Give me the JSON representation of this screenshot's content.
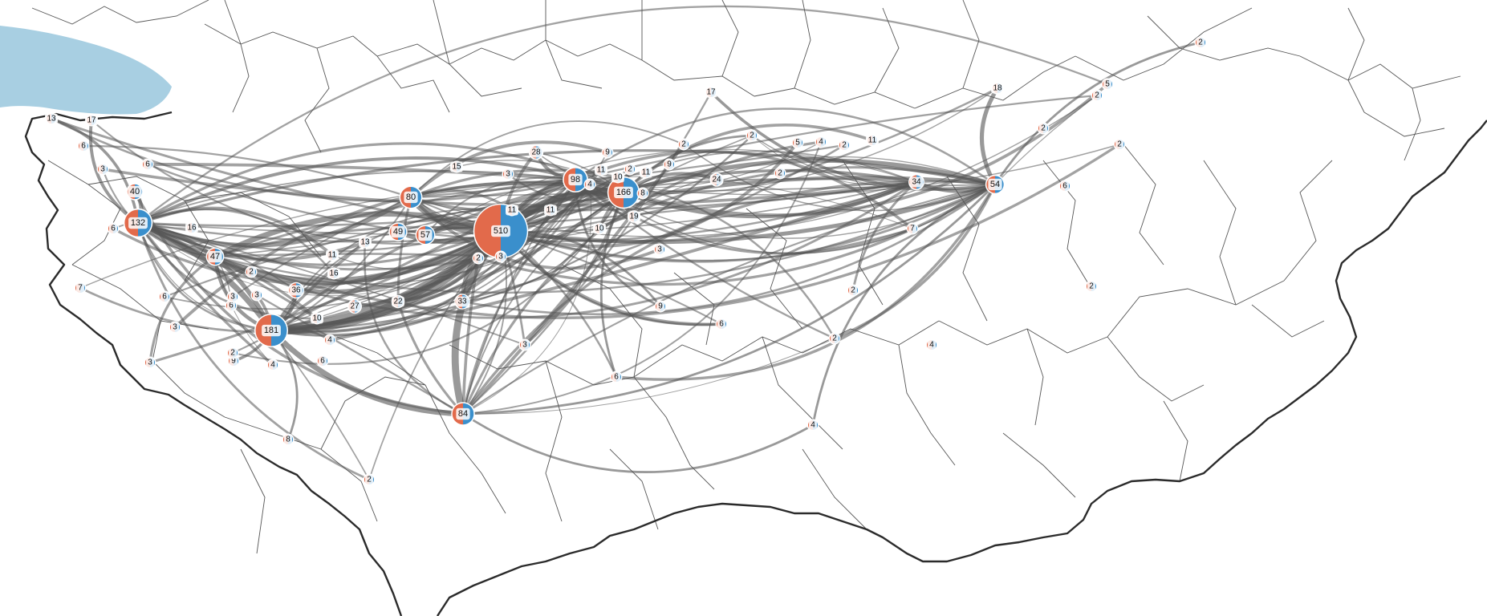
{
  "colors": {
    "lake": "#a8cfe2",
    "border": "#2b2b2b",
    "district": "#555555",
    "flow": "#555555",
    "outgoing": "#e26a4b",
    "incoming": "#3a8fcc",
    "label_bg": "#ffffff"
  },
  "nodes": [
    {
      "id": "n510",
      "label": "510",
      "value": 510,
      "out_share": 0.45
    },
    {
      "id": "n181",
      "label": "181",
      "value": 181,
      "out_share": 0.55
    },
    {
      "id": "n166",
      "label": "166",
      "value": 166,
      "out_share": 0.6
    },
    {
      "id": "n132",
      "label": "132",
      "value": 132,
      "out_share": 0.65
    },
    {
      "id": "n98",
      "label": "98",
      "value": 98,
      "out_share": 0.7
    },
    {
      "id": "n84",
      "label": "84",
      "value": 84,
      "out_share": 0.5
    },
    {
      "id": "n80",
      "label": "80",
      "value": 80,
      "out_share": 0.4
    },
    {
      "id": "n57",
      "label": "57",
      "value": 57,
      "out_share": 0.3
    },
    {
      "id": "n54",
      "label": "54",
      "value": 54,
      "out_share": 0.55
    },
    {
      "id": "n49",
      "label": "49",
      "value": 49,
      "out_share": 0.6
    },
    {
      "id": "n47",
      "label": "47",
      "value": 47,
      "out_share": 0.55
    },
    {
      "id": "n40",
      "label": "40",
      "value": 40,
      "out_share": 0.6
    },
    {
      "id": "n36",
      "label": "36",
      "value": 36,
      "out_share": 0.55
    },
    {
      "id": "n34",
      "label": "34",
      "value": 34,
      "out_share": 0.5
    },
    {
      "id": "n33",
      "label": "33",
      "value": 33,
      "out_share": 0.55
    },
    {
      "id": "n28",
      "label": "28",
      "value": 28,
      "out_share": 0.6
    },
    {
      "id": "n27",
      "label": "27",
      "value": 27,
      "out_share": 0.4
    },
    {
      "id": "n24",
      "label": "24",
      "value": 24,
      "out_share": 0.5
    },
    {
      "id": "n22",
      "label": "22",
      "value": 22,
      "out_share": 0.6
    },
    {
      "id": "n19",
      "label": "19",
      "value": 19,
      "out_share": 0.5
    },
    {
      "id": "n18",
      "label": "18",
      "value": 18,
      "out_share": 0.6
    },
    {
      "id": "n17a",
      "label": "17",
      "value": 17,
      "out_share": 0.5
    },
    {
      "id": "n17b",
      "label": "17",
      "value": 17,
      "out_share": 0.6
    },
    {
      "id": "n16a",
      "label": "16",
      "value": 16,
      "out_share": 0.4
    },
    {
      "id": "n16b",
      "label": "16",
      "value": 16,
      "out_share": 0.5
    },
    {
      "id": "n15",
      "label": "15",
      "value": 15,
      "out_share": 0.5
    },
    {
      "id": "n13a",
      "label": "13",
      "value": 13,
      "out_share": 0.6
    },
    {
      "id": "n13b",
      "label": "13",
      "value": 13,
      "out_share": 0.5
    },
    {
      "id": "n11a",
      "label": "11",
      "value": 11,
      "out_share": 0.5
    },
    {
      "id": "n11b",
      "label": "11",
      "value": 11,
      "out_share": 0.4
    },
    {
      "id": "n11c",
      "label": "11",
      "value": 11,
      "out_share": 0.6
    },
    {
      "id": "n11d",
      "label": "11",
      "value": 11,
      "out_share": 0.5
    },
    {
      "id": "n11e",
      "label": "11",
      "value": 11,
      "out_share": 0.5
    },
    {
      "id": "n11f",
      "label": "11",
      "value": 11,
      "out_share": 0.5
    },
    {
      "id": "n10a",
      "label": "10",
      "value": 10,
      "out_share": 0.6
    },
    {
      "id": "n10b",
      "label": "10",
      "value": 10,
      "out_share": 0.5
    },
    {
      "id": "n10c",
      "label": "10",
      "value": 10,
      "out_share": 0.5
    },
    {
      "id": "n9a",
      "label": "9",
      "value": 9,
      "out_share": 0.5
    },
    {
      "id": "n9b",
      "label": "9",
      "value": 9,
      "out_share": 0.5
    },
    {
      "id": "n9c",
      "label": "9",
      "value": 9,
      "out_share": 0.5
    },
    {
      "id": "n9d",
      "label": "9",
      "value": 9,
      "out_share": 0.5
    },
    {
      "id": "n8a",
      "label": "8",
      "value": 8,
      "out_share": 0.5
    },
    {
      "id": "n8b",
      "label": "8",
      "value": 8,
      "out_share": 0.5
    },
    {
      "id": "n7a",
      "label": "7",
      "value": 7,
      "out_share": 0.6
    },
    {
      "id": "n7b",
      "label": "7",
      "value": 7,
      "out_share": 0.4
    },
    {
      "id": "n6a",
      "label": "6",
      "value": 6,
      "out_share": 0.6
    },
    {
      "id": "n6b",
      "label": "6",
      "value": 6,
      "out_share": 0.5
    },
    {
      "id": "n6c",
      "label": "6",
      "value": 6,
      "out_share": 0.5
    },
    {
      "id": "n6d",
      "label": "6",
      "value": 6,
      "out_share": 0.5
    },
    {
      "id": "n6e",
      "label": "6",
      "value": 6,
      "out_share": 0.5
    },
    {
      "id": "n6f",
      "label": "6",
      "value": 6,
      "out_share": 0.5
    },
    {
      "id": "n6g",
      "label": "6",
      "value": 6,
      "out_share": 0.5
    },
    {
      "id": "n6h",
      "label": "6",
      "value": 6,
      "out_share": 0.5
    },
    {
      "id": "n6i",
      "label": "6",
      "value": 6,
      "out_share": 0.4
    },
    {
      "id": "n5a",
      "label": "5",
      "value": 5,
      "out_share": 0.6
    },
    {
      "id": "n5b",
      "label": "5",
      "value": 5,
      "out_share": 0.5
    },
    {
      "id": "n4a",
      "label": "4",
      "value": 4,
      "out_share": 0.4
    },
    {
      "id": "n4b",
      "label": "4",
      "value": 4,
      "out_share": 0.5
    },
    {
      "id": "n4c",
      "label": "4",
      "value": 4,
      "out_share": 0.5
    },
    {
      "id": "n4d",
      "label": "4",
      "value": 4,
      "out_share": 0.5
    },
    {
      "id": "n4e",
      "label": "4",
      "value": 4,
      "out_share": 0.5
    },
    {
      "id": "n4f",
      "label": "4",
      "value": 4,
      "out_share": 0.5
    },
    {
      "id": "n3a",
      "label": "3",
      "value": 3,
      "out_share": 0.6
    },
    {
      "id": "n3b",
      "label": "3",
      "value": 3,
      "out_share": 0.5
    },
    {
      "id": "n3c",
      "label": "3",
      "value": 3,
      "out_share": 0.5
    },
    {
      "id": "n3d",
      "label": "3",
      "value": 3,
      "out_share": 0.5
    },
    {
      "id": "n3e",
      "label": "3",
      "value": 3,
      "out_share": 0.5
    },
    {
      "id": "n3f",
      "label": "3",
      "value": 3,
      "out_share": 0.5
    },
    {
      "id": "n3g",
      "label": "3",
      "value": 3,
      "out_share": 0.5
    },
    {
      "id": "n3h",
      "label": "3",
      "value": 3,
      "out_share": 0.5
    },
    {
      "id": "n3i",
      "label": "3",
      "value": 3,
      "out_share": 0.5
    },
    {
      "id": "n2a",
      "label": "2",
      "value": 2,
      "out_share": 0.5
    },
    {
      "id": "n2b",
      "label": "2",
      "value": 2,
      "out_share": 0.5
    },
    {
      "id": "n2c",
      "label": "2",
      "value": 2,
      "out_share": 0.5
    },
    {
      "id": "n2d",
      "label": "2",
      "value": 2,
      "out_share": 0.5
    },
    {
      "id": "n2e",
      "label": "2",
      "value": 2,
      "out_share": 0.5
    },
    {
      "id": "n2f",
      "label": "2",
      "value": 2,
      "out_share": 0.5
    },
    {
      "id": "n2g",
      "label": "2",
      "value": 2,
      "out_share": 0.5
    },
    {
      "id": "n2h",
      "label": "2",
      "value": 2,
      "out_share": 0.5
    },
    {
      "id": "n2i",
      "label": "2",
      "value": 2,
      "out_share": 0.5
    },
    {
      "id": "n2j",
      "label": "2",
      "value": 2,
      "out_share": 0.5
    },
    {
      "id": "n2k",
      "label": "2",
      "value": 2,
      "out_share": 0.5
    },
    {
      "id": "n2l",
      "label": "2",
      "value": 2,
      "out_share": 0.5
    },
    {
      "id": "n2m",
      "label": "2",
      "value": 2,
      "out_share": 0.5
    },
    {
      "id": "n2n",
      "label": "2",
      "value": 2,
      "out_share": 0.5
    },
    {
      "id": "n2o",
      "label": "2",
      "value": 2,
      "out_share": 0.5
    },
    {
      "id": "n2p",
      "label": "2",
      "value": 2,
      "out_share": 0.5
    }
  ],
  "flows": [
    {
      "from": "n181",
      "to": "n510",
      "value": 60
    },
    {
      "from": "n510",
      "to": "n181",
      "value": 45
    },
    {
      "from": "n80",
      "to": "n510",
      "value": 35
    },
    {
      "from": "n510",
      "to": "n166",
      "value": 40
    },
    {
      "from": "n166",
      "to": "n510",
      "value": 32
    },
    {
      "from": "n132",
      "to": "n510",
      "value": 28
    },
    {
      "from": "n132",
      "to": "n181",
      "value": 20
    },
    {
      "from": "n98",
      "to": "n510",
      "value": 25
    },
    {
      "from": "n84",
      "to": "n510",
      "value": 30
    },
    {
      "from": "n181",
      "to": "n84",
      "value": 18
    },
    {
      "from": "n47",
      "to": "n510",
      "value": 18
    },
    {
      "from": "n54",
      "to": "n166",
      "value": 12
    },
    {
      "from": "n54",
      "to": "n510",
      "value": 10
    },
    {
      "from": "n18",
      "to": "n54",
      "value": 10
    },
    {
      "from": "n34",
      "to": "n54",
      "value": 8
    },
    {
      "from": "n40",
      "to": "n132",
      "value": 9
    },
    {
      "from": "n49",
      "to": "n510",
      "value": 14
    },
    {
      "from": "n57",
      "to": "n510",
      "value": 14
    },
    {
      "from": "n36",
      "to": "n510",
      "value": 12
    },
    {
      "from": "n22",
      "to": "n510",
      "value": 10
    },
    {
      "from": "n33",
      "to": "n510",
      "value": 10
    },
    {
      "from": "n27",
      "to": "n510",
      "value": 9
    },
    {
      "from": "n28",
      "to": "n98",
      "value": 7
    },
    {
      "from": "n166",
      "to": "n98",
      "value": 12
    },
    {
      "from": "n132",
      "to": "n80",
      "value": 12
    },
    {
      "from": "n17a",
      "to": "n132",
      "value": 6
    },
    {
      "from": "n13a",
      "to": "n132",
      "value": 5
    },
    {
      "from": "n181",
      "to": "n132",
      "value": 12
    },
    {
      "from": "n510",
      "to": "n54",
      "value": 8
    },
    {
      "from": "n24",
      "to": "n166",
      "value": 6
    },
    {
      "from": "n19",
      "to": "n166",
      "value": 5
    },
    {
      "from": "n166",
      "to": "n34",
      "value": 6
    },
    {
      "from": "n181",
      "to": "n166",
      "value": 8
    },
    {
      "from": "n132",
      "to": "n166",
      "value": 6
    },
    {
      "from": "n17b",
      "to": "n54",
      "value": 5
    },
    {
      "from": "n510",
      "to": "n34",
      "value": 5
    },
    {
      "from": "n47",
      "to": "n181",
      "value": 8
    },
    {
      "from": "n36",
      "to": "n181",
      "value": 9
    },
    {
      "from": "n9a",
      "to": "n181",
      "value": 5
    },
    {
      "from": "n8a",
      "to": "n181",
      "value": 3
    },
    {
      "from": "n2a",
      "to": "n54",
      "value": 3
    },
    {
      "from": "n4a",
      "to": "n54",
      "value": 3
    },
    {
      "from": "n84",
      "to": "n4a",
      "value": 3
    },
    {
      "from": "n181",
      "to": "n2f",
      "value": 2
    },
    {
      "from": "n166",
      "to": "n2f",
      "value": 3
    },
    {
      "from": "n132",
      "to": "n54",
      "value": 4
    },
    {
      "from": "n84",
      "to": "n54",
      "value": 3
    },
    {
      "from": "n510",
      "to": "n6h",
      "value": 3
    },
    {
      "from": "n98",
      "to": "n9d",
      "value": 3
    },
    {
      "from": "n181",
      "to": "n4c",
      "value": 3
    },
    {
      "from": "n510",
      "to": "n9d",
      "value": 3
    },
    {
      "from": "n166",
      "to": "n6g",
      "value": 3
    }
  ]
}
